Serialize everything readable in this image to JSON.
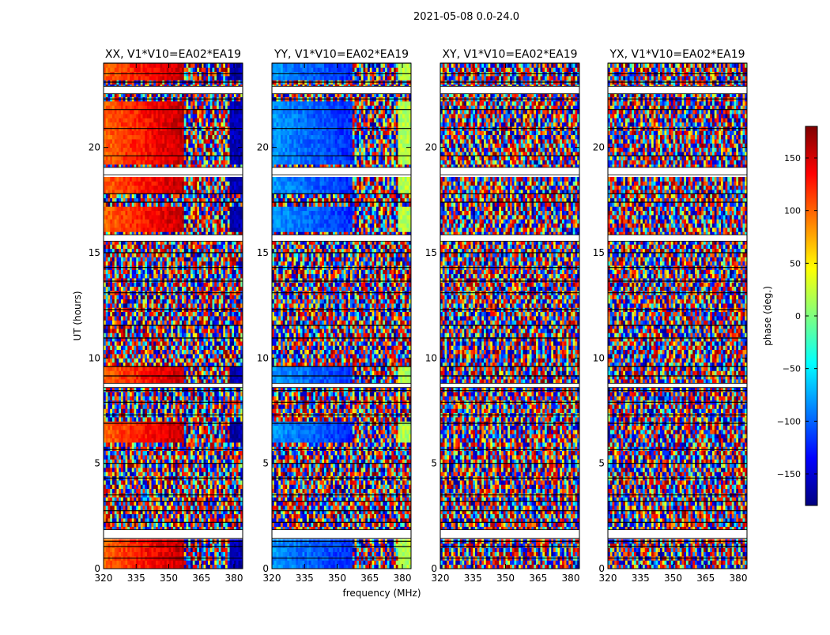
{
  "figure": {
    "suptitle": "2021-05-08 0.0-24.0",
    "xlabel": "frequency (MHz)",
    "ylabel": "UT (hours)"
  },
  "colorbar": {
    "label": "phase (deg.)",
    "range": [
      -180,
      180
    ],
    "ticks": [
      150,
      100,
      50,
      0,
      -50,
      -100,
      -150
    ],
    "tick_labels": [
      "150",
      "100",
      "50",
      "0",
      "−50",
      "−100",
      "−150"
    ],
    "colors": [
      "#00007f",
      "#0000ff",
      "#007fff",
      "#00ffff",
      "#7fff7f",
      "#ffff00",
      "#ff7f00",
      "#ff0000",
      "#7f0000"
    ]
  },
  "chart_data": {
    "type": "heatmap",
    "colormap": "jet",
    "panels": [
      {
        "title": "XX, V1*V10=EA02*EA19",
        "pol": "XX",
        "base_hue": 0.55,
        "drift": 0.6,
        "noise_boundary_freq": 357
      },
      {
        "title": "YY, V1*V10=EA02*EA19",
        "pol": "YY",
        "base_hue": -0.45,
        "drift": -0.4,
        "noise_boundary_freq": 357
      },
      {
        "title": "XY, V1*V10=EA02*EA19",
        "pol": "XY",
        "base_hue": 0.0,
        "drift": 0.0,
        "noise_boundary_freq": 320
      },
      {
        "title": "YX, V1*V10=EA02*EA19",
        "pol": "YX",
        "base_hue": 0.0,
        "drift": 0.0,
        "noise_boundary_freq": 320
      }
    ],
    "x": {
      "label": "frequency (MHz)",
      "range": [
        320,
        384
      ],
      "ticks": [
        320,
        335,
        350,
        365,
        380
      ],
      "tick_labels": [
        "320",
        "335",
        "350",
        "365",
        "380"
      ]
    },
    "y": {
      "label": "UT (hours)",
      "range": [
        0,
        24
      ],
      "ticks": [
        0,
        5,
        10,
        15,
        20
      ],
      "tick_labels": [
        "0",
        "5",
        "10",
        "15",
        "20"
      ]
    },
    "flagged_bands_hours": [
      [
        1.45,
        1.85
      ],
      [
        15.55,
        15.85
      ],
      [
        18.7,
        19.05
      ],
      [
        22.55,
        22.9
      ],
      [
        8.6,
        8.8
      ]
    ],
    "coherent_bands_hours": [
      [
        0.0,
        1.45
      ],
      [
        6.0,
        6.9
      ],
      [
        8.8,
        9.6
      ],
      [
        15.9,
        17.3
      ],
      [
        17.9,
        18.7
      ],
      [
        19.1,
        22.3
      ],
      [
        23.2,
        24.0
      ]
    ],
    "gap_lines_hours": [
      0.5,
      1.05,
      1.3,
      2.2,
      2.75,
      3.2,
      3.5,
      4.3,
      5.0,
      5.65,
      6.9,
      7.3,
      7.9,
      8.45,
      9.15,
      9.6,
      10.95,
      11.55,
      12.3,
      13.1,
      13.65,
      14.3,
      15.0,
      17.4,
      17.8,
      19.6,
      20.9,
      21.8,
      22.3,
      23.1,
      23.5,
      24.0
    ]
  }
}
